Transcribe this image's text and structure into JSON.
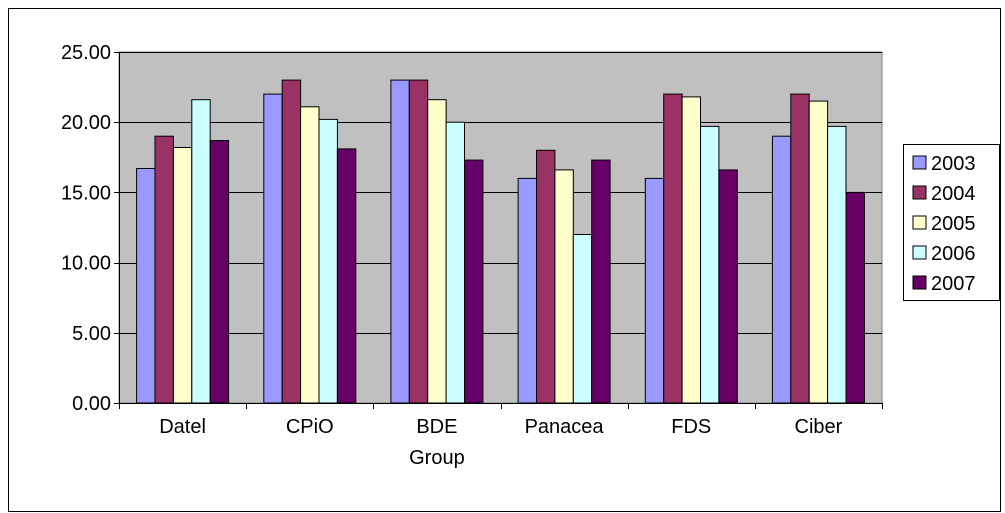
{
  "chart_data": {
    "type": "bar",
    "title": "",
    "xlabel": "",
    "ylabel": "",
    "categories": [
      "Datel",
      "CPiO",
      "BDE Group",
      "Panacea",
      "FDS",
      "Ciber"
    ],
    "category_label_lines": [
      [
        "Datel"
      ],
      [
        "CPiO"
      ],
      [
        "BDE",
        "Group"
      ],
      [
        "Panacea"
      ],
      [
        "FDS"
      ],
      [
        "Ciber"
      ]
    ],
    "ylim": [
      0,
      25
    ],
    "yticks": [
      "0.00",
      "5.00",
      "10.00",
      "15.00",
      "20.00",
      "25.00"
    ],
    "ytick_values": [
      0,
      5,
      10,
      15,
      20,
      25
    ],
    "grid": true,
    "legend_position": "right",
    "series": [
      {
        "name": "2003",
        "color": "#9999ff",
        "values": [
          16.7,
          22.0,
          23.0,
          16.0,
          16.0,
          19.0
        ]
      },
      {
        "name": "2004",
        "color": "#993366",
        "values": [
          19.0,
          23.0,
          23.0,
          18.0,
          22.0,
          22.0
        ]
      },
      {
        "name": "2005",
        "color": "#ffffcc",
        "values": [
          18.2,
          21.1,
          21.6,
          16.6,
          21.8,
          21.5
        ]
      },
      {
        "name": "2006",
        "color": "#ccffff",
        "values": [
          21.6,
          20.2,
          20.0,
          12.0,
          19.7,
          19.7
        ]
      },
      {
        "name": "2007",
        "color": "#660066",
        "values": [
          18.7,
          18.1,
          17.3,
          17.3,
          16.6,
          15.0
        ]
      }
    ],
    "plot_background": "#c0c0c0"
  }
}
